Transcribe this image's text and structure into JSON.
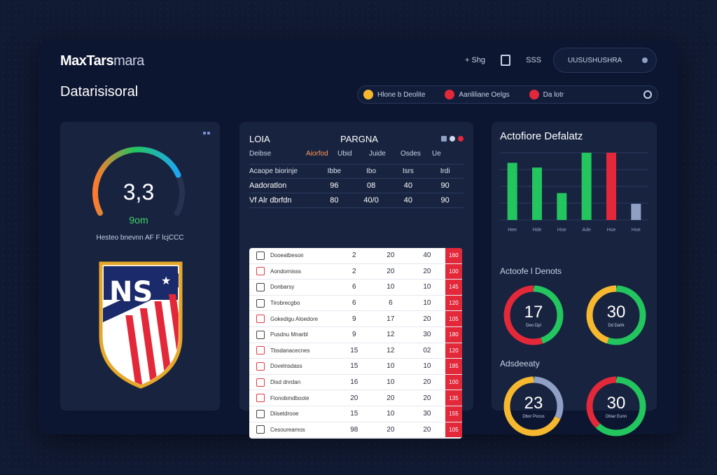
{
  "header": {
    "brand": "MaxTars",
    "brand_light": "mara",
    "actions": [
      "+ Shg",
      "SSS"
    ],
    "user_pill": "UUSUSHUSHRA",
    "page_title": "Datarisisoral"
  },
  "filters": [
    {
      "label": "Hlone b Deolite",
      "color": "#f5b82e"
    },
    {
      "label": "Aanliliane Oelgs",
      "color": "#e3283a"
    },
    {
      "label": "Da lotr",
      "color": "#e3283a"
    }
  ],
  "gauge": {
    "value_text": "3,3",
    "sub_text": "9om",
    "level_pct": 78,
    "caption": "Hesteo bnevnn AF  F  lcjCCC"
  },
  "table": {
    "title_left": "LOIA",
    "title_right": "PARGNA",
    "columns": [
      "Deibse",
      "Aiorfod",
      "Ubid",
      "Juide",
      "Osdes",
      "Ue"
    ],
    "summary": [
      {
        "label": "Acaope biorinje",
        "cells": [
          "Ibbe",
          "Ibo",
          "Isrs",
          "Irdi"
        ]
      },
      {
        "label": "Aadoratlon",
        "cells": [
          "96",
          "08",
          "40",
          "90"
        ]
      },
      {
        "label": "Vf Alr dbrfdn",
        "cells": [
          "80",
          "40/0",
          "40",
          "90"
        ]
      }
    ],
    "rows": [
      {
        "name": "Dooeatbeson",
        "a": "2",
        "b": "20",
        "c": "40",
        "d": "160",
        "red": false
      },
      {
        "name": "Aondornisss",
        "a": "2",
        "b": "20",
        "c": "20",
        "d": "100",
        "red": true
      },
      {
        "name": "Donbarsy",
        "a": "6",
        "b": "10",
        "c": "10",
        "d": "145",
        "red": false
      },
      {
        "name": "Tirobrecgbo",
        "a": "6",
        "b": "6",
        "c": "10",
        "d": "120",
        "red": false
      },
      {
        "name": "Gokedigu Aloedore",
        "a": "9",
        "b": "17",
        "c": "20",
        "d": "105",
        "red": true
      },
      {
        "name": "Pusdnu Mnarbl",
        "a": "9",
        "b": "12",
        "c": "30",
        "d": "180",
        "red": false
      },
      {
        "name": "Tbsdanacecnes",
        "a": "15",
        "b": "12",
        "c": "02",
        "d": "120",
        "red": true
      },
      {
        "name": "Dovelnsdass",
        "a": "15",
        "b": "10",
        "c": "10",
        "d": "185",
        "red": true
      },
      {
        "name": "Disd dnrdan",
        "a": "16",
        "b": "10",
        "c": "20",
        "d": "100",
        "red": true
      },
      {
        "name": "Fionobmdboote",
        "a": "20",
        "b": "20",
        "c": "20",
        "d": "135",
        "red": true
      },
      {
        "name": "Diisetdrooe",
        "a": "15",
        "b": "10",
        "c": "30",
        "d": "155",
        "red": false
      },
      {
        "name": "Cesoureamos",
        "a": "98",
        "b": "20",
        "c": "20",
        "d": "105",
        "red": false
      }
    ]
  },
  "right": {
    "title": "Actofiore Defalatz",
    "section1": "Actoofe l Denots",
    "section2": "Adsdeeaty"
  },
  "chart_data": {
    "type": "bar",
    "categories": [
      "Hee",
      "Hde",
      "Hoe",
      "Ade",
      "Hoe",
      "Hoe"
    ],
    "values": [
      85,
      78,
      40,
      100,
      100,
      24
    ],
    "colors": [
      "#22c55e",
      "#22c55e",
      "#22c55e",
      "#22c55e",
      "#e3283a",
      "#8fa0c4"
    ],
    "ylim": [
      0,
      100
    ],
    "grid": true
  },
  "donuts": [
    {
      "value": "17",
      "sub": "Deo Dpl",
      "segments": [
        {
          "pct": 45,
          "color": "#22c55e"
        },
        {
          "pct": 55,
          "color": "#e3283a"
        }
      ]
    },
    {
      "value": "30",
      "sub": "Dd Dalrk",
      "segments": [
        {
          "pct": 55,
          "color": "#22c55e"
        },
        {
          "pct": 45,
          "color": "#f5b82e"
        }
      ]
    },
    {
      "value": "23",
      "sub": "Dbor Pocus",
      "segments": [
        {
          "pct": 32,
          "color": "#8fa0c4"
        },
        {
          "pct": 68,
          "color": "#f5b82e"
        }
      ]
    },
    {
      "value": "30",
      "sub": "Dbiar Eunn",
      "segments": [
        {
          "pct": 62,
          "color": "#22c55e"
        },
        {
          "pct": 38,
          "color": "#e3283a"
        }
      ]
    }
  ]
}
